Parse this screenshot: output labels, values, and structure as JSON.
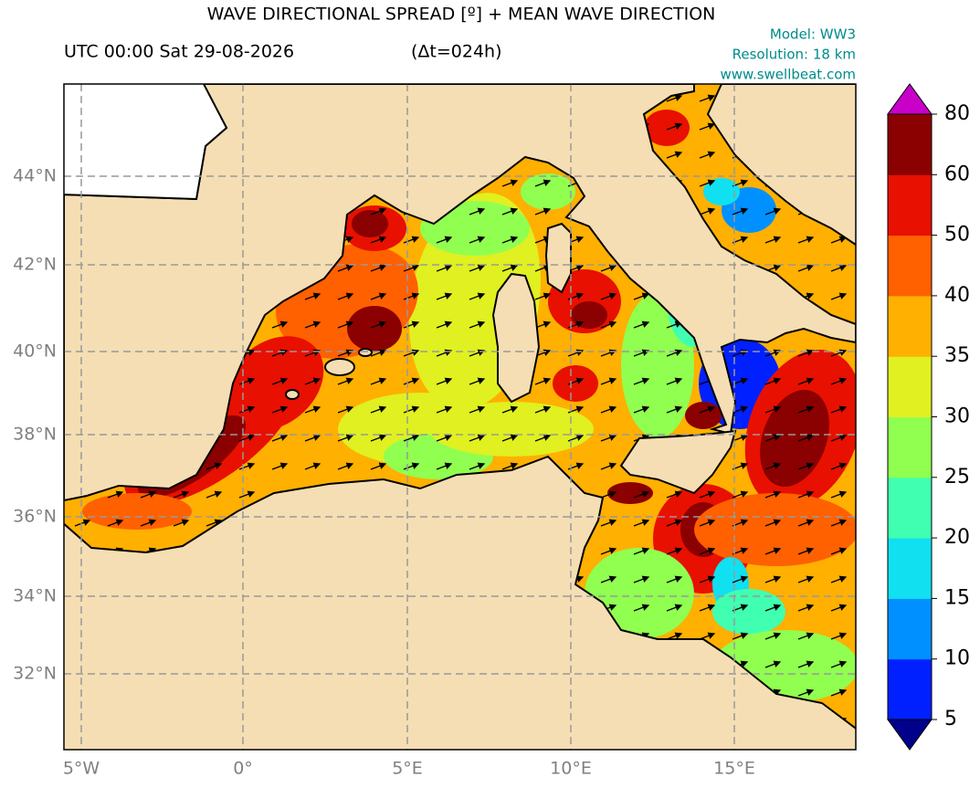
{
  "header": {
    "title": "WAVE DIRECTIONAL SPREAD [º] + MEAN WAVE DIRECTION",
    "time": "UTC 00:00 Sat 29-08-2026",
    "step": "(Δt=024h)",
    "model": "Model: WW3",
    "resolution": "Resolution: 18 km",
    "website": "www.swellbeat.com"
  },
  "map": {
    "lat_labels": [
      "44°N",
      "42°N",
      "40°N",
      "38°N",
      "36°N",
      "34°N",
      "32°N"
    ],
    "lon_labels": [
      "5°W",
      "0°",
      "5°E",
      "10°E",
      "15°E"
    ]
  },
  "colorbar": {
    "ticks": [
      5,
      10,
      15,
      20,
      25,
      30,
      35,
      40,
      50,
      60,
      80
    ],
    "colors": [
      "#0020ff",
      "#0090ff",
      "#10e0f0",
      "#40ffb0",
      "#90ff50",
      "#e0f020",
      "#ffb000",
      "#ff6000",
      "#e81000",
      "#8b0000"
    ],
    "over_color": "#c800c8",
    "under_color": "#00008b"
  }
}
